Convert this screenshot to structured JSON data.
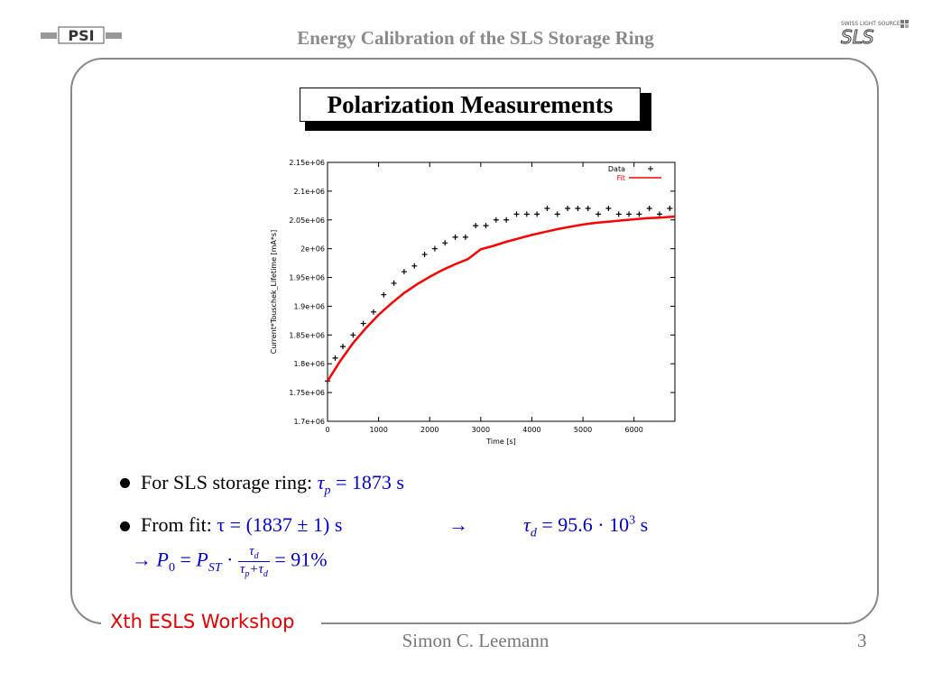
{
  "header": {
    "title": "Energy Calibration of the SLS Storage Ring",
    "left_logo": "PSI",
    "right_logo_caption": "SWISS LIGHT SOURCE",
    "right_logo_text": "SLS"
  },
  "slide": {
    "title": "Polarization Measurements"
  },
  "bullets": {
    "b1_prefix": "For SLS storage ring: ",
    "b1_math_sym": "τ",
    "b1_math_sub": "p",
    "b1_math_rest": " = 1873 s",
    "b2_prefix": "From fit: ",
    "b2_math1": "τ = (1837 ± 1) s",
    "b2_arrow": "→",
    "b2_math2_sym": "τ",
    "b2_math2_sub": "d",
    "b2_math2_rest": " = 95.6 · 10",
    "b2_math2_exp": "3",
    "b2_math2_unit": " s",
    "b3_arrow": "→ ",
    "b3_lhs": "P",
    "b3_lhs_sub": "0",
    "b3_eq": " = ",
    "b3_pst": "P",
    "b3_pst_sub": "ST",
    "b3_dot": " · ",
    "b3_num": "τ",
    "b3_num_sub": "d",
    "b3_den": "τ",
    "b3_den_sub1": "p",
    "b3_den_plus": "+τ",
    "b3_den_sub2": "d",
    "b3_result": " = 91%"
  },
  "footer": {
    "workshop": "Xth ESLS Workshop",
    "author": "Simon C. Leemann",
    "page": "3"
  },
  "colors": {
    "accent_red": "#e00000",
    "math_blue": "#0000cc",
    "header_gray": "#8a8a8a",
    "fit_red": "#ff0000"
  },
  "chart_data": {
    "type": "scatter",
    "xlabel": "Time [s]",
    "ylabel": "Current*Touschek_Lifetime [mA*s]",
    "xlim": [
      0,
      6800
    ],
    "ylim": [
      1700000,
      2150000
    ],
    "x_ticks": [
      0,
      1000,
      2000,
      3000,
      4000,
      5000,
      6000
    ],
    "x_tick_labels": [
      "0",
      "1000",
      "2000",
      "3000",
      "4000",
      "5000",
      "6000"
    ],
    "y_ticks": [
      1700000,
      1750000,
      1800000,
      1850000,
      1900000,
      1950000,
      2000000,
      2050000,
      2100000,
      2150000
    ],
    "y_tick_labels": [
      "1.7e+06",
      "1.75e+06",
      "1.8e+06",
      "1.85e+06",
      "1.9e+06",
      "1.95e+06",
      "2e+06",
      "2.05e+06",
      "2.1e+06",
      "2.15e+06"
    ],
    "legend_position": "top-right",
    "series": [
      {
        "name": "Data",
        "marker": "+",
        "color": "#000000",
        "x": [
          0,
          150,
          300,
          500,
          700,
          900,
          1100,
          1300,
          1500,
          1700,
          1900,
          2100,
          2300,
          2500,
          2700,
          2900,
          3100,
          3300,
          3500,
          3700,
          3900,
          4100,
          4300,
          4500,
          4700,
          4900,
          5100,
          5300,
          5500,
          5700,
          5900,
          6100,
          6300,
          6500,
          6700
        ],
        "y": [
          1770000,
          1810000,
          1830000,
          1850000,
          1870000,
          1890000,
          1920000,
          1940000,
          1960000,
          1970000,
          1990000,
          2000000,
          2010000,
          2020000,
          2020000,
          2040000,
          2040000,
          2050000,
          2050000,
          2060000,
          2060000,
          2060000,
          2070000,
          2060000,
          2070000,
          2070000,
          2070000,
          2060000,
          2070000,
          2060000,
          2060000,
          2060000,
          2070000,
          2060000,
          2070000
        ]
      },
      {
        "name": "Fit",
        "color": "#ff0000",
        "x": [
          0,
          250,
          500,
          750,
          1000,
          1250,
          1500,
          1750,
          2000,
          2250,
          2500,
          2750,
          3000,
          3250,
          3500,
          3750,
          4000,
          4250,
          4500,
          4750,
          5000,
          5250,
          5500,
          5750,
          6000,
          6250,
          6500,
          6800
        ],
        "y": [
          1770000,
          1805000,
          1836000,
          1862000,
          1885000,
          1905000,
          1923000,
          1938000,
          1951000,
          1963000,
          1973000,
          1982000,
          1999000,
          2005000,
          2012000,
          2018000,
          2024000,
          2029000,
          2034000,
          2038000,
          2042000,
          2045000,
          2047000,
          2049000,
          2051000,
          2053000,
          2054000,
          2056000
        ]
      }
    ]
  }
}
